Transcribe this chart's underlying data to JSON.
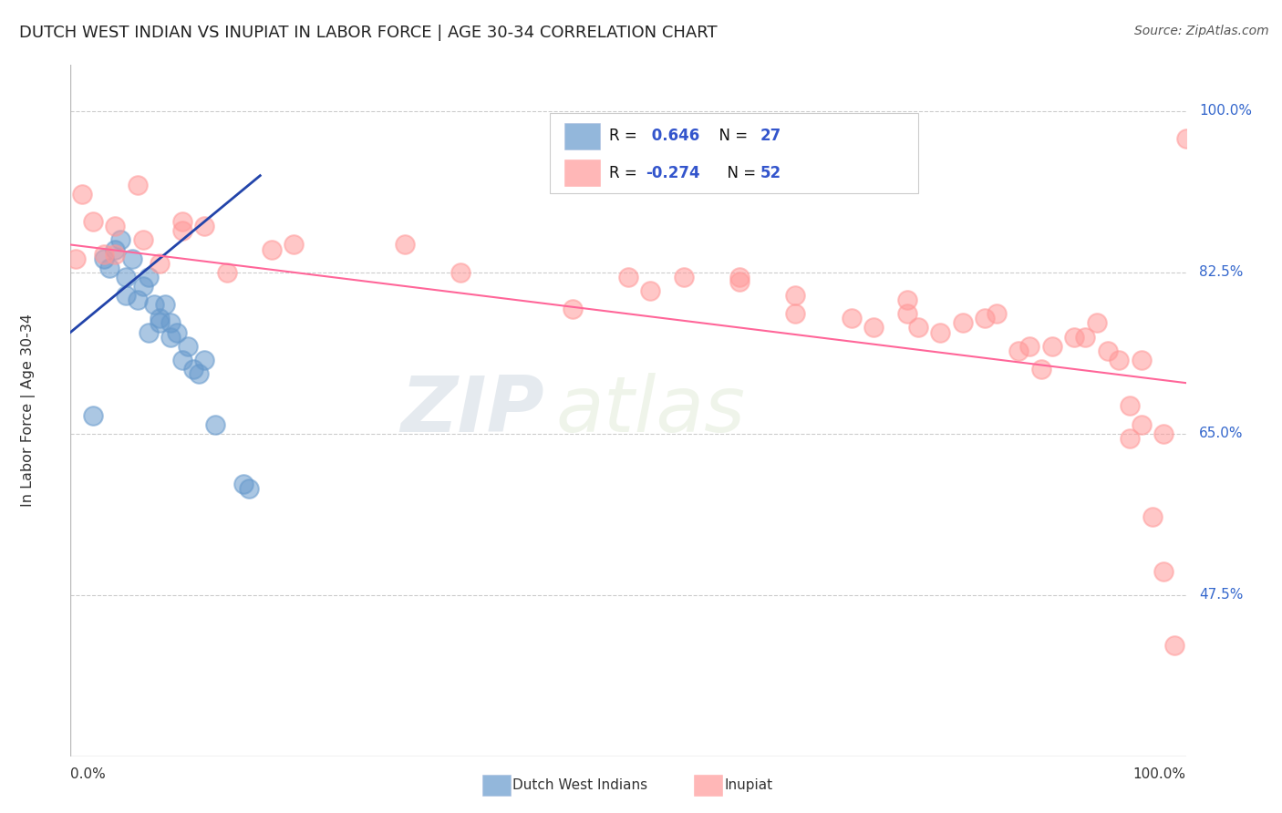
{
  "title": "DUTCH WEST INDIAN VS INUPIAT IN LABOR FORCE | AGE 30-34 CORRELATION CHART",
  "source": "Source: ZipAtlas.com",
  "ylabel": "In Labor Force | Age 30-34",
  "xlim": [
    0.0,
    1.0
  ],
  "ylim": [
    0.3,
    1.05
  ],
  "y_tick_values": [
    0.475,
    0.65,
    0.825,
    1.0
  ],
  "y_tick_labels": [
    "47.5%",
    "65.0%",
    "82.5%",
    "100.0%"
  ],
  "watermark_zip": "ZIP",
  "watermark_atlas": "atlas",
  "blue_color": "#6699CC",
  "pink_color": "#FF9999",
  "blue_line_color": "#2244AA",
  "pink_line_color": "#FF6699",
  "dutch_x": [
    0.02,
    0.03,
    0.035,
    0.04,
    0.045,
    0.05,
    0.05,
    0.055,
    0.06,
    0.065,
    0.07,
    0.07,
    0.075,
    0.08,
    0.08,
    0.085,
    0.09,
    0.09,
    0.095,
    0.1,
    0.105,
    0.11,
    0.115,
    0.12,
    0.13,
    0.155,
    0.16
  ],
  "dutch_y": [
    0.67,
    0.84,
    0.83,
    0.85,
    0.86,
    0.8,
    0.82,
    0.84,
    0.795,
    0.81,
    0.82,
    0.76,
    0.79,
    0.775,
    0.77,
    0.79,
    0.77,
    0.755,
    0.76,
    0.73,
    0.745,
    0.72,
    0.715,
    0.73,
    0.66,
    0.595,
    0.59
  ],
  "inupiat_x": [
    0.005,
    0.01,
    0.02,
    0.03,
    0.04,
    0.04,
    0.06,
    0.065,
    0.08,
    0.1,
    0.1,
    0.12,
    0.14,
    0.18,
    0.2,
    0.3,
    0.35,
    0.45,
    0.5,
    0.52,
    0.55,
    0.6,
    0.6,
    0.65,
    0.65,
    0.7,
    0.72,
    0.75,
    0.75,
    0.76,
    0.78,
    0.8,
    0.82,
    0.83,
    0.85,
    0.86,
    0.87,
    0.88,
    0.9,
    0.91,
    0.92,
    0.93,
    0.94,
    0.95,
    0.95,
    0.96,
    0.96,
    0.97,
    0.98,
    0.98,
    0.99,
    1.0
  ],
  "inupiat_y": [
    0.84,
    0.91,
    0.88,
    0.845,
    0.875,
    0.845,
    0.92,
    0.86,
    0.835,
    0.88,
    0.87,
    0.875,
    0.825,
    0.85,
    0.855,
    0.855,
    0.825,
    0.785,
    0.82,
    0.805,
    0.82,
    0.82,
    0.815,
    0.78,
    0.8,
    0.775,
    0.765,
    0.795,
    0.78,
    0.765,
    0.76,
    0.77,
    0.775,
    0.78,
    0.74,
    0.745,
    0.72,
    0.745,
    0.755,
    0.755,
    0.77,
    0.74,
    0.73,
    0.68,
    0.645,
    0.66,
    0.73,
    0.56,
    0.5,
    0.65,
    0.42,
    0.97
  ],
  "blue_trend_x": [
    0.0,
    0.17
  ],
  "blue_trend_y": [
    0.76,
    0.93
  ],
  "pink_trend_x": [
    0.0,
    1.0
  ],
  "pink_trend_y": [
    0.855,
    0.705
  ],
  "legend_r1_val": "0.646",
  "legend_r1_n": "27",
  "legend_r2_val": "-0.274",
  "legend_r2_n": "52",
  "label_dutch": "Dutch West Indians",
  "label_inupiat": "Inupiat"
}
